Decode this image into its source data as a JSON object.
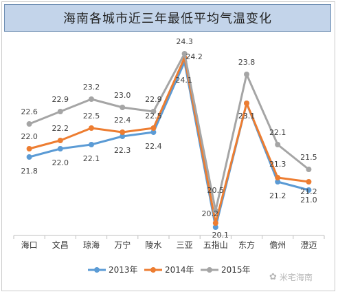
{
  "chart_data": {
    "type": "line",
    "title": "海南各城市近三年最低平均气温变化",
    "categories": [
      "海口",
      "文昌",
      "琼海",
      "万宁",
      "陵水",
      "三亚",
      "五指山",
      "东方",
      "儋州",
      "澄迈"
    ],
    "series": [
      {
        "name": "2013年",
        "color": "#5b9bd5",
        "values": [
          21.8,
          22.0,
          22.1,
          22.3,
          22.4,
          24.1,
          20.1,
          23.1,
          21.2,
          21.0
        ]
      },
      {
        "name": "2014年",
        "color": "#ed7d31",
        "values": [
          22.0,
          22.2,
          22.5,
          22.4,
          22.5,
          24.2,
          20.2,
          23.1,
          21.3,
          21.2
        ]
      },
      {
        "name": "2015年",
        "color": "#a5a5a5",
        "values": [
          22.6,
          22.9,
          23.2,
          23.0,
          22.9,
          24.3,
          20.5,
          23.8,
          22.1,
          21.5
        ]
      }
    ],
    "ylim": [
      20.0,
      24.6
    ],
    "grid": false,
    "legend": "bottom"
  },
  "watermark": "米宅海南"
}
